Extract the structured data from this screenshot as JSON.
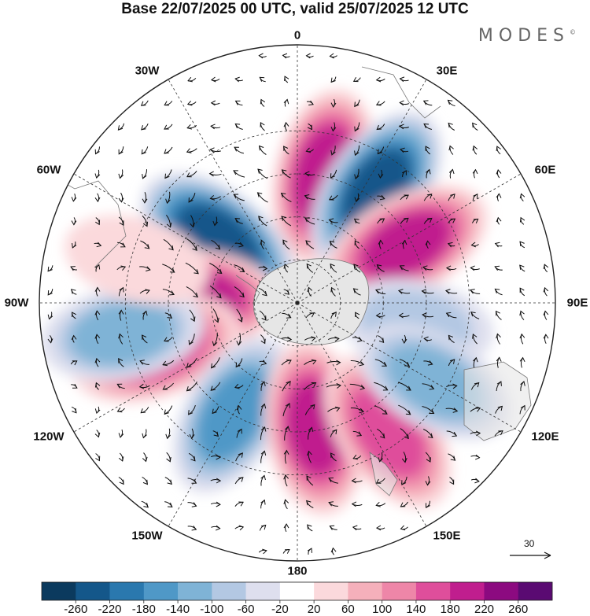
{
  "title": "Base 22/07/2025 00 UTC, valid 25/07/2025 12 UTC",
  "brand": {
    "name": "MODES",
    "mark": "©"
  },
  "longitude_labels": {
    "lon_0": "0",
    "lon_30e": "30E",
    "lon_60e": "60E",
    "lon_90e": "90E",
    "lon_120e": "120E",
    "lon_150e": "150E",
    "lon_180": "180",
    "lon_150w": "150W",
    "lon_120w": "120W",
    "lon_90w": "90W",
    "lon_60w": "60W",
    "lon_30w": "30W"
  },
  "reference_vector": {
    "value": "30"
  },
  "colorbar": {
    "labels": [
      "-260",
      "-220",
      "-180",
      "-140",
      "-100",
      "-60",
      "-20",
      "20",
      "60",
      "100",
      "140",
      "180",
      "220",
      "260"
    ],
    "colors": [
      "#0b3a5e",
      "#14578a",
      "#2a78ae",
      "#4f98c7",
      "#7fb3d6",
      "#b3c8e3",
      "#dedfee",
      "#ffffff",
      "#fbd9dc",
      "#f5b0bb",
      "#ee86a8",
      "#df4e9b",
      "#c01e8e",
      "#8c0a80",
      "#5a0a72"
    ]
  },
  "anomaly_centers": [
    {
      "lon": 12,
      "lat": -45,
      "value": 220
    },
    {
      "lon": 35,
      "lat": -42,
      "value": -230
    },
    {
      "lon": 62,
      "lat": -47,
      "value": 200
    },
    {
      "lon": -52,
      "lat": -55,
      "value": -250
    },
    {
      "lon": -88,
      "lat": -53,
      "value": 220
    },
    {
      "lon": -108,
      "lat": -38,
      "value": 180
    },
    {
      "lon": -150,
      "lat": -45,
      "value": -150
    },
    {
      "lon": -100,
      "lat": -28,
      "value": -110
    },
    {
      "lon": 172,
      "lat": -46,
      "value": 200
    },
    {
      "lon": 145,
      "lat": -35,
      "value": 170
    },
    {
      "lon": 100,
      "lat": -48,
      "value": -80
    },
    {
      "lon": 120,
      "lat": -35,
      "value": -120
    },
    {
      "lon": -75,
      "lat": -32,
      "value": 60
    }
  ]
}
